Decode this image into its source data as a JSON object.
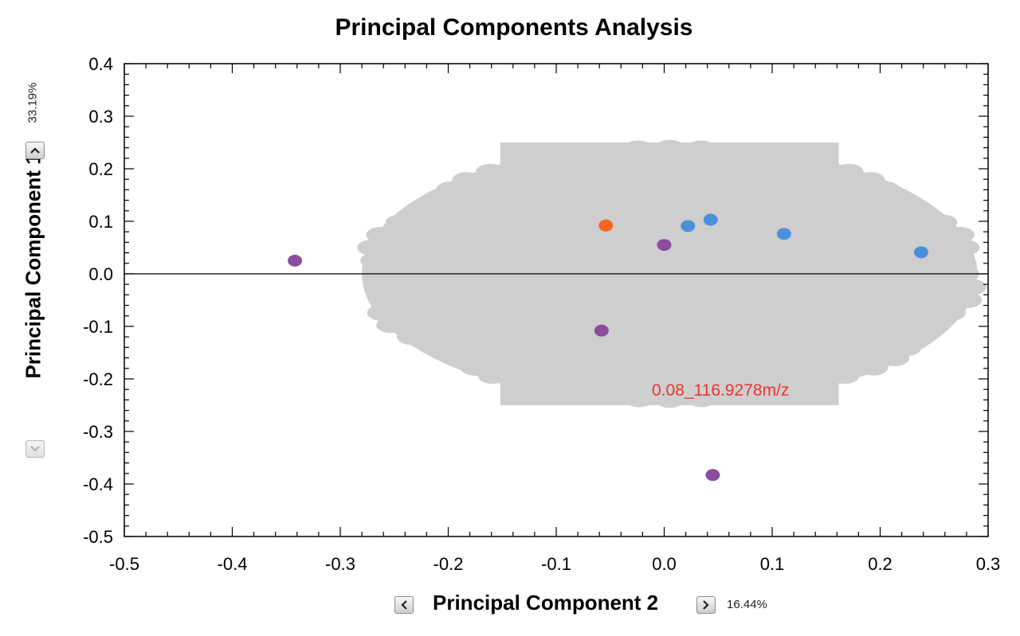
{
  "chart_data": {
    "type": "scatter",
    "title": "Principal Components Analysis",
    "xlabel": "Principal Component 2",
    "ylabel": "Principal Component 1",
    "x_variance": "16.44%",
    "y_variance": "33.19%",
    "xlim": [
      -0.5,
      0.3
    ],
    "ylim": [
      -0.5,
      0.4
    ],
    "x_ticks": [
      "-0.5",
      "-0.4",
      "-0.3",
      "-0.2",
      "-0.1",
      "0.0",
      "0.1",
      "0.2",
      "0.3"
    ],
    "y_ticks": [
      "0.4",
      "0.3",
      "0.2",
      "0.1",
      "0.0",
      "-0.1",
      "-0.2",
      "-0.3",
      "-0.4",
      "-0.5"
    ],
    "loadings_cloud": {
      "color": "#cecece",
      "x_range": [
        -0.28,
        0.29
      ],
      "y_range": [
        -0.25,
        0.25
      ]
    },
    "highlighted_loading": {
      "label": "0.08_116.9278m/z",
      "color": "#e8372f"
    },
    "series": [
      {
        "color": "#8b4c9e",
        "points": [
          [
            -0.342,
            0.025
          ],
          [
            -0.058,
            -0.108
          ],
          [
            0.0,
            0.055
          ],
          [
            0.045,
            -0.383
          ]
        ]
      },
      {
        "color": "#f26522",
        "points": [
          [
            -0.054,
            0.092
          ]
        ]
      },
      {
        "color": "#4a90d9",
        "points": [
          [
            0.022,
            0.091
          ],
          [
            0.043,
            0.103
          ],
          [
            0.111,
            0.076
          ],
          [
            0.238,
            0.041
          ]
        ]
      }
    ],
    "grid": false
  },
  "controls": {
    "y_up_icon": "chevron-up-icon",
    "y_down_icon": "chevron-down-icon",
    "x_left_icon": "chevron-left-icon",
    "x_right_icon": "chevron-right-icon"
  }
}
